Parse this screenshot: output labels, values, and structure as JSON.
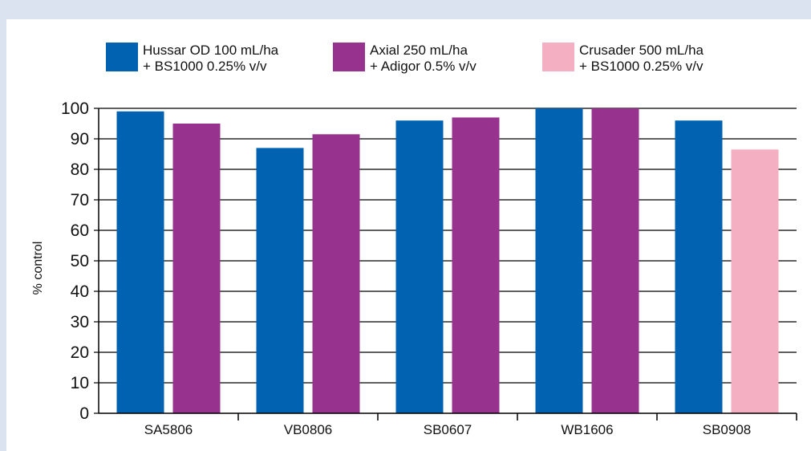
{
  "chart_data": {
    "type": "bar",
    "title": "",
    "xlabel": "",
    "ylabel": "% control",
    "ylim": [
      0,
      100
    ],
    "yticks": [
      0,
      10,
      20,
      30,
      40,
      50,
      60,
      70,
      80,
      90,
      100
    ],
    "grid": true,
    "legend_position": "top",
    "categories": [
      "SA5806",
      "VB0806",
      "SB0607",
      "WB1606",
      "SB0908"
    ],
    "series": [
      {
        "name": "Hussar OD 100 mL/ha + BS1000 0.25% v/v",
        "legend_lines": [
          "Hussar OD 100 mL/ha",
          "+ BS1000 0.25% v/v"
        ],
        "color": "#0062b0",
        "values": [
          99,
          87,
          96,
          100,
          96
        ]
      },
      {
        "name": "Axial 250 mL/ha + Adigor 0.5% v/v",
        "legend_lines": [
          "Axial 250 mL/ha",
          "+ Adigor 0.5% v/v"
        ],
        "color": "#97328f",
        "values": [
          95,
          91.5,
          97,
          100,
          null
        ]
      },
      {
        "name": "Crusader 500 mL/ha + BS1000 0.25% v/v",
        "legend_lines": [
          "Crusader 500 mL/ha",
          "+ BS1000 0.25% v/v"
        ],
        "color": "#f5afc2",
        "values": [
          null,
          null,
          null,
          null,
          86.5
        ]
      }
    ]
  }
}
